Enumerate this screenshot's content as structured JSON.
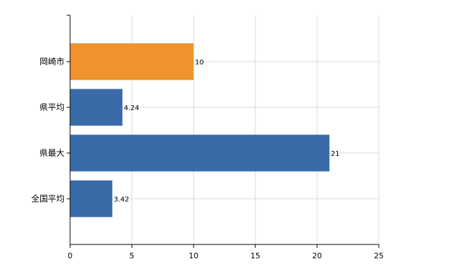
{
  "chart_data": {
    "type": "bar",
    "orientation": "horizontal",
    "categories": [
      "岡崎市",
      "県平均",
      "県最大",
      "全国平均"
    ],
    "values": [
      10,
      4.24,
      21,
      3.42
    ],
    "data_labels": [
      "10",
      "4.24",
      "21",
      "3.42"
    ],
    "bar_colors": [
      "#f0922e",
      "#3a6aa8",
      "#3a6aa8",
      "#3a6aa8"
    ],
    "title": "",
    "xlabel": "",
    "ylabel": "",
    "xlim": [
      0,
      25
    ],
    "x_ticks": [
      0,
      5,
      10,
      15,
      20,
      25
    ],
    "grid": true,
    "legend": "none"
  }
}
